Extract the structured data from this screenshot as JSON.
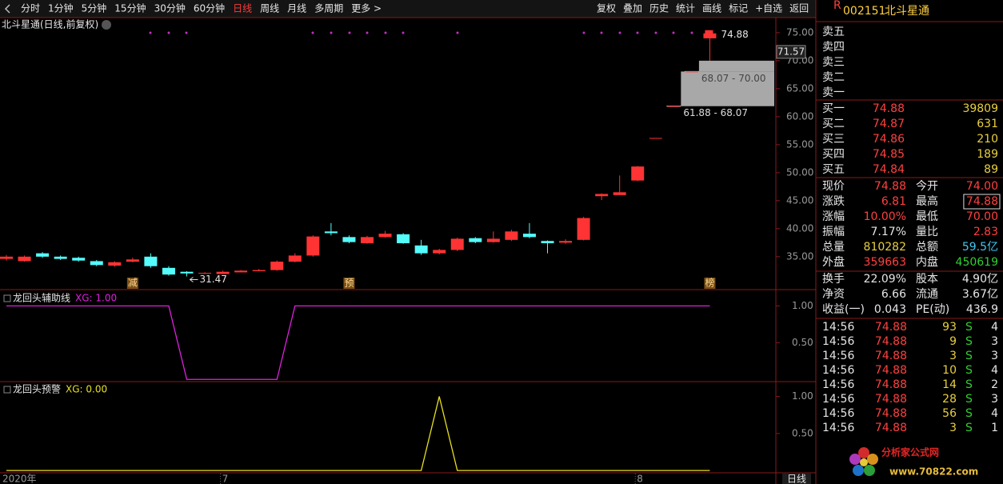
{
  "toolbar": {
    "periods": [
      "分时",
      "1分钟",
      "5分钟",
      "15分钟",
      "30分钟",
      "60分钟",
      "日线",
      "周线",
      "月线",
      "多周期",
      "更多 >"
    ],
    "active_index": 6,
    "tools": [
      "复权",
      "叠加",
      "历史",
      "统计",
      "画线",
      "标记",
      "+自选",
      "返回"
    ]
  },
  "main_chart": {
    "title": "北斗星通(日线,前复权)",
    "open": [
      34.6,
      34.2,
      35.6,
      35.0,
      34.8,
      34.2,
      33.4,
      34.1,
      35.0,
      33.0,
      32.3,
      32.0,
      31.9,
      32.2,
      32.4,
      32.6,
      34.1,
      35.2,
      39.5,
      38.5,
      37.4,
      38.5,
      39.0,
      37.0,
      35.6,
      36.2,
      38.3,
      37.6,
      38.0,
      39.1,
      37.8,
      37.5,
      38.0,
      45.8,
      46.0,
      48.6,
      56.2,
      61.88,
      68.07,
      74.0
    ],
    "high": [
      35.3,
      35.2,
      35.8,
      35.2,
      35.0,
      34.4,
      34.2,
      34.8,
      35.6,
      33.3,
      32.4,
      32.2,
      32.5,
      32.6,
      32.8,
      34.3,
      35.6,
      38.8,
      41.0,
      38.8,
      38.7,
      39.6,
      39.2,
      38.0,
      36.4,
      38.4,
      38.5,
      39.5,
      39.8,
      41.0,
      37.9,
      38.1,
      42.1,
      46.3,
      49.5,
      51.2,
      56.2,
      61.88,
      68.07,
      74.88
    ],
    "low": [
      34.3,
      34.1,
      34.8,
      34.4,
      34.1,
      33.3,
      33.2,
      34.0,
      33.0,
      31.6,
      31.47,
      31.9,
      32.0,
      32.2,
      32.4,
      32.5,
      34.0,
      35.0,
      38.8,
      37.4,
      37.3,
      38.4,
      37.3,
      35.3,
      35.4,
      36.0,
      37.4,
      37.5,
      37.8,
      38.3,
      35.6,
      37.3,
      37.9,
      45.1,
      46.0,
      48.5,
      56.2,
      61.88,
      68.07,
      70.0
    ],
    "close": [
      35.0,
      35.0,
      35.0,
      34.6,
      34.3,
      33.5,
      34.0,
      34.5,
      33.3,
      31.8,
      32.0,
      32.1,
      32.3,
      32.5,
      32.6,
      34.1,
      35.2,
      38.6,
      39.2,
      37.6,
      38.5,
      39.1,
      37.4,
      35.6,
      36.2,
      38.2,
      37.6,
      38.2,
      39.5,
      38.5,
      37.4,
      37.8,
      41.9,
      46.2,
      46.5,
      51.1,
      56.2,
      61.88,
      68.07,
      74.88
    ],
    "up_color": "#ff3333",
    "down_color": "#54fcfc",
    "ylim": [
      29.4,
      77.7
    ],
    "yticks": [
      {
        "value": 35,
        "label": "35.00"
      },
      {
        "value": 40,
        "label": "40.00"
      },
      {
        "value": 45,
        "label": "45.00"
      },
      {
        "value": 50,
        "label": "50.00"
      },
      {
        "value": 55,
        "label": "55.00"
      },
      {
        "value": 60,
        "label": "60.00"
      },
      {
        "value": 65,
        "label": "65.00"
      },
      {
        "value": 70,
        "label": "70.00"
      },
      {
        "value": 75,
        "label": "75.00"
      }
    ],
    "cursor_price": 71.57,
    "gaps": [
      {
        "low": 68.07,
        "high": 70.0,
        "label": "68.07 - 70.00"
      },
      {
        "low": 61.88,
        "high": 68.07,
        "label": "61.88 - 68.07"
      }
    ],
    "markers": [
      null,
      null,
      null,
      null,
      null,
      null,
      null,
      "减",
      null,
      null,
      null,
      null,
      null,
      null,
      null,
      null,
      null,
      null,
      null,
      "预",
      null,
      null,
      null,
      null,
      null,
      null,
      null,
      null,
      null,
      null,
      null,
      null,
      null,
      null,
      null,
      null,
      null,
      null,
      null,
      "榜"
    ]
  },
  "indicators": [
    {
      "title": "龙回头辅助线",
      "readout": "XG: 1.00",
      "color": "#e020e0",
      "ylim": [
        -0.03,
        1.2
      ],
      "yticks": [
        {
          "value": 0.5,
          "label": "0.50"
        },
        {
          "value": 1,
          "label": "1.00"
        }
      ],
      "values": [
        1,
        1,
        1,
        1,
        1,
        1,
        1,
        1,
        1,
        1,
        0,
        0,
        0,
        0,
        0,
        0,
        1,
        1,
        1,
        1,
        1,
        1,
        1,
        1,
        1,
        1,
        1,
        1,
        1,
        1,
        1,
        1,
        1,
        1,
        1,
        1,
        1,
        1,
        1,
        1
      ]
    },
    {
      "title": "龙回头预警",
      "readout": "XG: 0.00",
      "color": "#e8e020",
      "ylim": [
        -0.02,
        1.19
      ],
      "yticks": [
        {
          "value": 0.5,
          "label": "0.50"
        },
        {
          "value": 1,
          "label": "1.00"
        }
      ],
      "values": [
        0,
        0,
        0,
        0,
        0,
        0,
        0,
        0,
        0,
        0,
        0,
        0,
        0,
        0,
        0,
        0,
        0,
        0,
        0,
        0,
        0,
        0,
        0,
        0,
        1,
        0,
        0,
        0,
        0,
        0,
        0,
        0,
        0,
        0,
        0,
        0,
        0,
        0,
        0,
        0
      ]
    }
  ],
  "x_labels": [
    "2020年",
    null,
    null,
    null,
    null,
    null,
    null,
    null,
    null,
    null,
    null,
    null,
    "7",
    null,
    null,
    null,
    null,
    null,
    null,
    null,
    null,
    null,
    null,
    null,
    null,
    null,
    null,
    null,
    null,
    null,
    null,
    null,
    null,
    null,
    null,
    "8",
    null,
    null,
    null,
    null
  ],
  "period_button": "日线",
  "quote": {
    "flag": "R",
    "code": "002151",
    "name": "北斗星通",
    "sell": [
      "卖五",
      "卖四",
      "卖三",
      "卖二",
      "卖一"
    ],
    "buy": [
      {
        "label": "买一",
        "price": "74.88",
        "volume": "39809"
      },
      {
        "label": "买二",
        "price": "74.87",
        "volume": "631"
      },
      {
        "label": "买三",
        "price": "74.86",
        "volume": "210"
      },
      {
        "label": "买四",
        "price": "74.85",
        "volume": "189"
      },
      {
        "label": "买五",
        "price": "74.84",
        "volume": "89"
      }
    ],
    "stats": [
      [
        {
          "k": "现价",
          "v": "74.88",
          "c": "#ff4040"
        },
        {
          "k": "今开",
          "v": "74.00",
          "c": "#ff4040"
        }
      ],
      [
        {
          "k": "涨跌",
          "v": "6.81",
          "c": "#ff4040"
        },
        {
          "k": "最高",
          "v": "74.88",
          "c": "#ff4040"
        }
      ],
      [
        {
          "k": "涨幅",
          "v": "10.00%",
          "c": "#ff4040"
        },
        {
          "k": "最低",
          "v": "70.00",
          "c": "#ff4040"
        }
      ],
      [
        {
          "k": "振幅",
          "v": "7.17%",
          "c": "#e6e6e6"
        },
        {
          "k": "量比",
          "v": "2.83",
          "c": "#ff4040"
        }
      ],
      [
        {
          "k": "总量",
          "v": "810282",
          "c": "#e8d040"
        },
        {
          "k": "总额",
          "v": "59.5亿",
          "c": "#40c8f0"
        }
      ],
      [
        {
          "k": "外盘",
          "v": "359663",
          "c": "#ff4040"
        },
        {
          "k": "内盘",
          "v": "450619",
          "c": "#30d030"
        }
      ]
    ],
    "stats2": [
      [
        {
          "k": "换手",
          "v": "22.09%",
          "c": "#e6e6e6"
        },
        {
          "k": "股本",
          "v": "4.90亿",
          "c": "#e6e6e6"
        }
      ],
      [
        {
          "k": "净资",
          "v": "6.66",
          "c": "#e6e6e6"
        },
        {
          "k": "流通",
          "v": "3.67亿",
          "c": "#e6e6e6"
        }
      ],
      [
        {
          "k": "收益(一)",
          "v": "0.043",
          "c": "#e6e6e6"
        },
        {
          "k": "PE(动)",
          "v": "436.9",
          "c": "#e6e6e6"
        }
      ]
    ],
    "trades": [
      [
        "14:56",
        "74.88",
        "93",
        "S",
        "4"
      ],
      [
        "14:56",
        "74.88",
        "9",
        "S",
        "3"
      ],
      [
        "14:56",
        "74.88",
        "3",
        "S",
        "3"
      ],
      [
        "14:56",
        "74.88",
        "10",
        "S",
        "4"
      ],
      [
        "14:56",
        "74.88",
        "14",
        "S",
        "2"
      ],
      [
        "14:56",
        "74.88",
        "28",
        "S",
        "3"
      ],
      [
        "14:56",
        "74.88",
        "56",
        "S",
        "4"
      ],
      [
        "14:56",
        "74.88",
        "3",
        "S",
        "1"
      ]
    ]
  },
  "watermark": {
    "title": "分析家公式网",
    "url": "www.70822.com"
  }
}
